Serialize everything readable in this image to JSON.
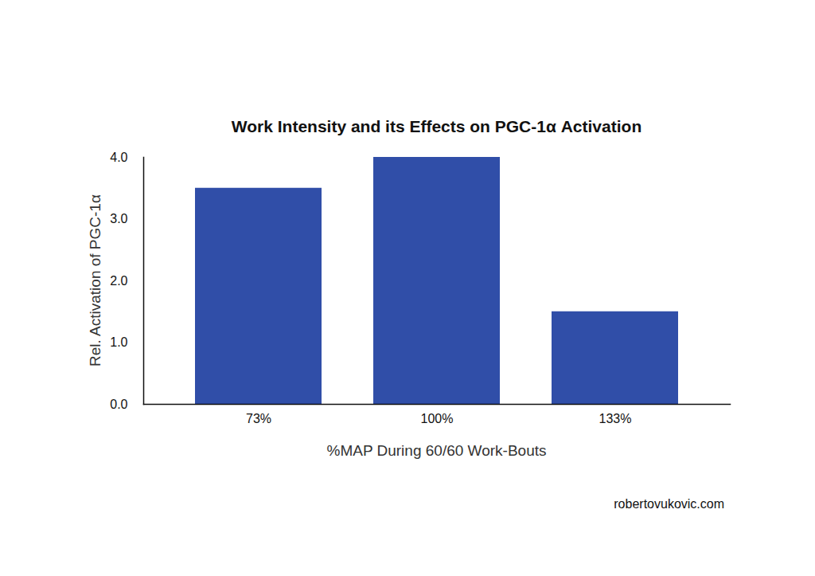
{
  "chart_data": {
    "type": "bar",
    "title": "Work Intensity and its Effects on PGC-1α Activation",
    "x_label": "%MAP During 60/60 Work-Bouts",
    "y_label": "Rel. Activation of PGC-1α",
    "credit": "robertovukovic.com",
    "categories": [
      "73%",
      "100%",
      "133%"
    ],
    "values": [
      3.5,
      4,
      1.5
    ],
    "color": "#304ea8",
    "ylim": [
      0,
      4
    ],
    "yticks": [
      0,
      1,
      2,
      3,
      4
    ],
    "grid": false
  }
}
